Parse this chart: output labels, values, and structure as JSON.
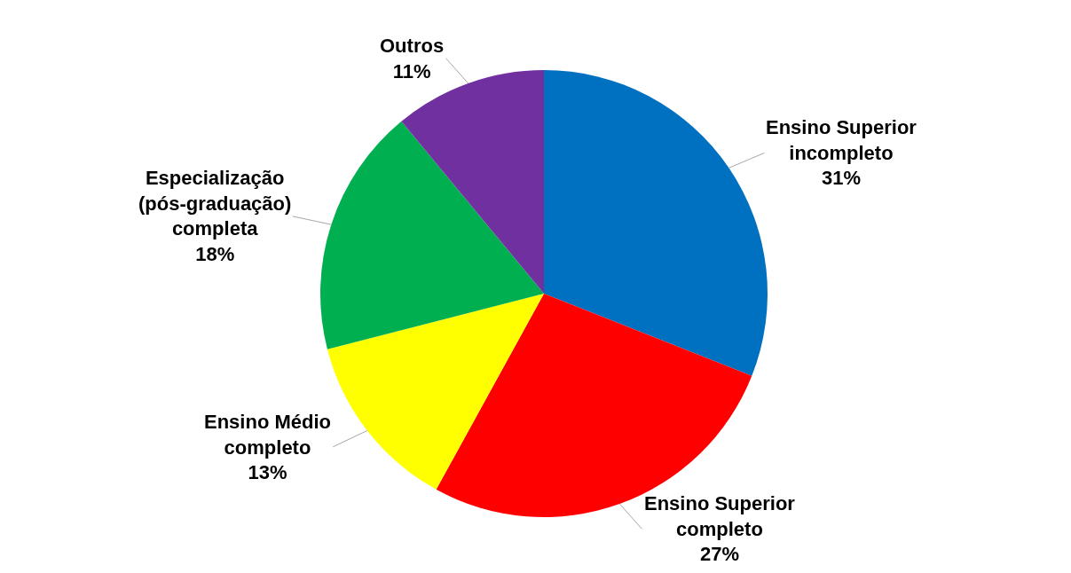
{
  "chart_data": {
    "type": "pie",
    "categories": [
      "Ensino Superior incompleto",
      "Ensino Superior completo",
      "Ensino Médio completo",
      "Especialização (pós-graduação) completa",
      "Outros"
    ],
    "values": [
      31,
      27,
      13,
      18,
      11
    ],
    "colors": [
      "#0070c0",
      "#ff0000",
      "#ffff00",
      "#00b050",
      "#7030a0"
    ],
    "value_labels": [
      "31%",
      "27%",
      "13%",
      "18%",
      "11%"
    ]
  }
}
